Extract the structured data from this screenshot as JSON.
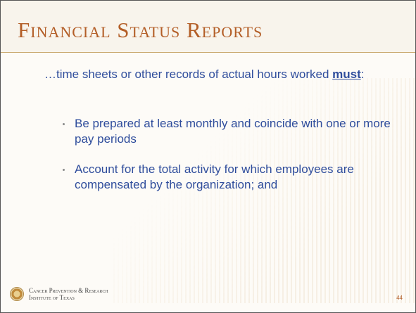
{
  "header": {
    "title": "Financial Status Reports"
  },
  "intro": {
    "text": "…time sheets or other records of actual hours worked ",
    "emphasis": "must",
    "suffix": ":"
  },
  "bullets": [
    "Be prepared at least monthly and coincide with one or more pay periods",
    "Account for the total activity for which employees are compensated by the organization; and"
  ],
  "footer": {
    "organization_line1": "Cancer Prevention & Research",
    "organization_line2": "Institute of Texas",
    "page_number": "44"
  }
}
